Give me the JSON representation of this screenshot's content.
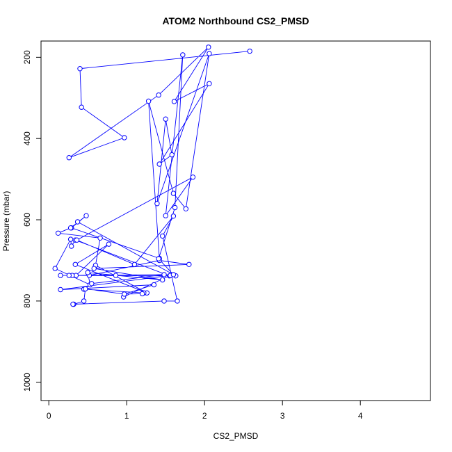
{
  "chart_data": {
    "type": "line",
    "title": "ATOM2 Northbound CS2_PMSD",
    "xlabel": "CS2_PMSD",
    "ylabel": "Pressure (mbar)",
    "xlim": [
      -0.1,
      4.9
    ],
    "ylim": [
      1045,
      160
    ],
    "y_inverted": true,
    "x_ticks": [
      0,
      1,
      2,
      3,
      4
    ],
    "y_ticks": [
      200,
      400,
      600,
      800,
      1000
    ],
    "grid": false,
    "legend": "none",
    "color": "#0000ff",
    "marker": "open-circle",
    "series": [
      {
        "x": [
          2.58,
          0.4,
          0.42,
          0.97,
          0.26,
          1.41,
          2.05,
          1.61,
          2.06,
          1.42,
          1.58,
          1.5,
          1.39,
          2.06,
          1.76,
          1.6,
          1.28,
          1.42,
          0.29,
          0.48,
          0.28,
          0.12,
          0.66,
          0.6,
          1.26,
          0.34,
          0.77,
          0.35,
          0.3,
          0.86,
          0.15,
          0.52,
          1.42,
          1.8,
          0.58,
          1.46,
          0.5,
          0.53,
          0.08,
          0.28,
          0.29,
          0.34,
          1.55,
          1.63,
          0.26,
          1.48,
          0.55,
          0.45,
          1.22,
          1.2,
          0.97,
          0.96,
          1.56,
          0.15,
          1.35,
          0.97,
          0.47,
          0.45,
          0.32,
          0.31,
          1.48,
          1.65,
          1.46,
          1.6,
          1.1,
          0.36,
          1.85,
          1.5,
          1.72,
          1.62,
          1.41,
          1.6,
          0.37
        ],
        "y": [
          185,
          228,
          323,
          398,
          447,
          293,
          175,
          309,
          265,
          463,
          440,
          352,
          560,
          191,
          573,
          535,
          308,
          695,
          620,
          590,
          620,
          633,
          645,
          712,
          780,
          710,
          660,
          737,
          737,
          737,
          737,
          737,
          700,
          710,
          720,
          748,
          730,
          760,
          720,
          648,
          665,
          650,
          738,
          738,
          737,
          735,
          757,
          771,
          780,
          782,
          783,
          790,
          737,
          772,
          760,
          783,
          770,
          800,
          808,
          808,
          800,
          800,
          640,
          591,
          710,
          650,
          495,
          590,
          194,
          570,
          696,
          735,
          605
        ]
      }
    ]
  }
}
